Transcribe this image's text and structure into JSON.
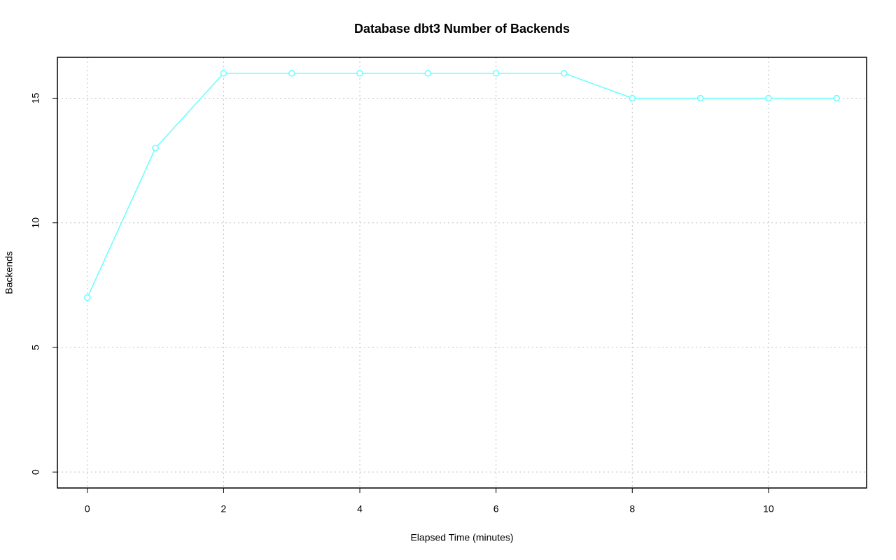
{
  "chart_data": {
    "type": "line",
    "title": "Database dbt3 Number of Backends",
    "x_label": "Elapsed Time (minutes)",
    "y_label": "Backends",
    "x": [
      0,
      1,
      2,
      3,
      4,
      5,
      6,
      7,
      8,
      9,
      10,
      11
    ],
    "values": [
      7,
      13,
      16,
      16,
      16,
      16,
      16,
      16,
      15,
      15,
      15,
      15
    ],
    "color": "#66ffff",
    "xlim": [
      -0.44,
      11.44
    ],
    "xticks": [
      0,
      2,
      4,
      6,
      8,
      10
    ],
    "ylim": [
      -0.64,
      16.64
    ],
    "yticks": [
      0,
      5,
      10,
      15
    ],
    "grid": true
  }
}
